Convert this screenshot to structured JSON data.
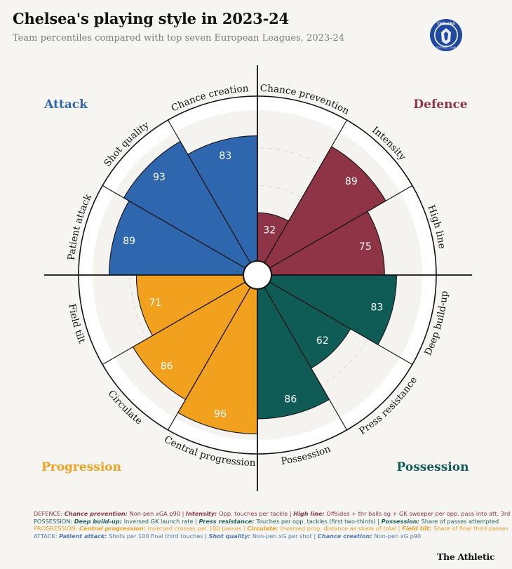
{
  "title": "Chelsea's playing style in 2023-24",
  "subtitle": "Team percentiles compared with top seven European Leagues, 2023-24",
  "crest": {
    "name": "Chelsea crest",
    "text_top": "CHELSEA",
    "text_bottom": "FOOTBALL CLUB",
    "color": "#1f4aa0"
  },
  "quadrants": {
    "attack": {
      "label": "Attack",
      "color": "#2f67ae"
    },
    "defence": {
      "label": "Defence",
      "color": "#8f3446"
    },
    "progression": {
      "label": "Progression",
      "color": "#f2a11e"
    },
    "possession": {
      "label": "Possession",
      "color": "#0f5c57"
    }
  },
  "chart_data": {
    "type": "radial-bar",
    "title": "Chelsea's playing style in 2023-24",
    "subtitle": "Team percentiles compared with top seven European Leagues, 2023-24",
    "range": [
      0,
      100
    ],
    "grid": true,
    "categories": [
      {
        "label": "Chance prevention",
        "value": 32,
        "group": "defence"
      },
      {
        "label": "Intensity",
        "value": 89,
        "group": "defence"
      },
      {
        "label": "High line",
        "value": 75,
        "group": "defence"
      },
      {
        "label": "Deep build-up",
        "value": 83,
        "group": "possession"
      },
      {
        "label": "Press resistance",
        "value": 62,
        "group": "possession"
      },
      {
        "label": "Possession",
        "value": 86,
        "group": "possession"
      },
      {
        "label": "Central progression",
        "value": 96,
        "group": "progression"
      },
      {
        "label": "Circulate",
        "value": 86,
        "group": "progression"
      },
      {
        "label": "Field tilt",
        "value": 71,
        "group": "progression"
      },
      {
        "label": "Patient attack",
        "value": 89,
        "group": "attack"
      },
      {
        "label": "Shot quality",
        "value": 93,
        "group": "attack"
      },
      {
        "label": "Chance creation",
        "value": 83,
        "group": "attack"
      }
    ]
  },
  "notes": {
    "defence": {
      "prefix": "DEFENCE:",
      "items": [
        {
          "k": "Chance prevention:",
          "v": "Non-pen xGA p90"
        },
        {
          "k": "Intensity:",
          "v": "Opp. touches per tackle"
        },
        {
          "k": "High line:",
          "v": "Offsides + thr balls ag + GK sweeper per opp. pass into att. 3rd"
        }
      ]
    },
    "possession": {
      "prefix": "POSSESSION:",
      "items": [
        {
          "k": "Deep build-up:",
          "v": "Inversed GK launch rate"
        },
        {
          "k": "Press resistance:",
          "v": "Touches per opp. tackles (first two-thirds)"
        },
        {
          "k": "Possession:",
          "v": "Share of passes attempted"
        }
      ]
    },
    "progression": {
      "prefix": "PROGRESSION:",
      "items": [
        {
          "k": "Central progression:",
          "v": "Inversed crosses per 100 passes"
        },
        {
          "k": "Circulate:",
          "v": "Inversed prog. distance as share of total"
        },
        {
          "k": "Field tilt:",
          "v": "Share of final third passes"
        }
      ]
    },
    "attack": {
      "prefix": "ATTACK:",
      "items": [
        {
          "k": "Patient attack:",
          "v": "Shots per 100 final third touches"
        },
        {
          "k": "Shot quality:",
          "v": "Non-pen xG per shot"
        },
        {
          "k": "Chance creation:",
          "v": "Non-pen xG p90"
        }
      ]
    }
  },
  "brand": "The Athletic"
}
